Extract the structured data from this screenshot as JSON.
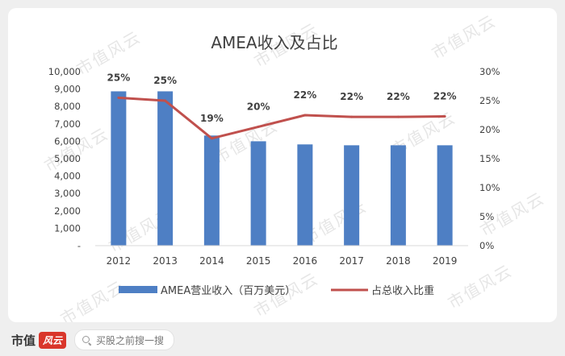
{
  "watermark_text": "市值风云",
  "footer": {
    "brand": "市值",
    "brand_logo": "风云",
    "search_placeholder": "买股之前搜一搜"
  },
  "chart_data": {
    "type": "bar",
    "title": "AMEA收入及占比",
    "categories": [
      "2012",
      "2013",
      "2014",
      "2015",
      "2016",
      "2017",
      "2018",
      "2019"
    ],
    "series": [
      {
        "name": "AMEA营业收入（百万美元）",
        "type": "bar",
        "axis": "left",
        "color": "#4e7fc4",
        "values": [
          8870,
          8870,
          6330,
          6000,
          5820,
          5770,
          5770,
          5770
        ]
      },
      {
        "name": "占总收入比重",
        "type": "line",
        "axis": "right",
        "color": "#c0504d",
        "values": [
          25.5,
          25.0,
          18.5,
          20.5,
          22.5,
          22.2,
          22.2,
          22.3
        ],
        "data_labels": [
          "25%",
          "25%",
          "19%",
          "20%",
          "22%",
          "22%",
          "22%",
          "22%"
        ]
      }
    ],
    "y_left": {
      "min": 0,
      "max": 10000,
      "ticks": [
        "-",
        "1,000",
        "2,000",
        "3,000",
        "4,000",
        "5,000",
        "6,000",
        "7,000",
        "8,000",
        "9,000",
        "10,000"
      ]
    },
    "y_right": {
      "min": 0,
      "max": 30,
      "ticks": [
        "0%",
        "5%",
        "10%",
        "15%",
        "20%",
        "25%",
        "30%"
      ]
    },
    "legend_position": "bottom",
    "grid": false
  }
}
